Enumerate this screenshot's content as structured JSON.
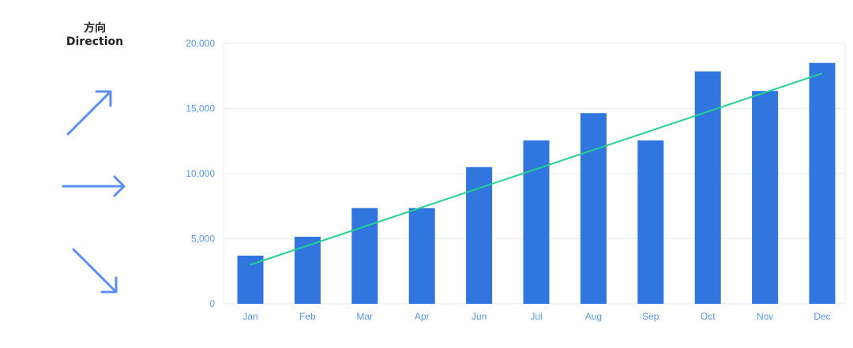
{
  "legend": {
    "title_cn": "方向",
    "title_en": "Direction",
    "icons": [
      "arrow-up-right-icon",
      "arrow-right-icon",
      "arrow-down-right-icon"
    ]
  },
  "colors": {
    "bar": "#3076de",
    "trendline": "#25d390",
    "tick_text": "#5a97ee",
    "grid": "#e6eef8",
    "arrow": "#5b8ff2"
  },
  "chart_data": {
    "type": "bar",
    "categories": [
      "Jan",
      "Feb",
      "Mar",
      "Apr",
      "Jun",
      "Jul",
      "Aug",
      "Sep",
      "Oct",
      "Nov",
      "Dec"
    ],
    "values": [
      3700,
      5150,
      7350,
      7350,
      10500,
      12550,
      14650,
      12550,
      17850,
      16350,
      18500
    ],
    "trendline": {
      "start": 3000,
      "end": 17700
    },
    "ylim": [
      0,
      20000
    ],
    "yticks": [
      0,
      5000,
      10000,
      15000,
      20000
    ],
    "ytick_labels": [
      "0",
      "5,000",
      "10,000",
      "15,000",
      "20,000"
    ],
    "title": "",
    "xlabel": "",
    "ylabel": "",
    "grid": true
  }
}
